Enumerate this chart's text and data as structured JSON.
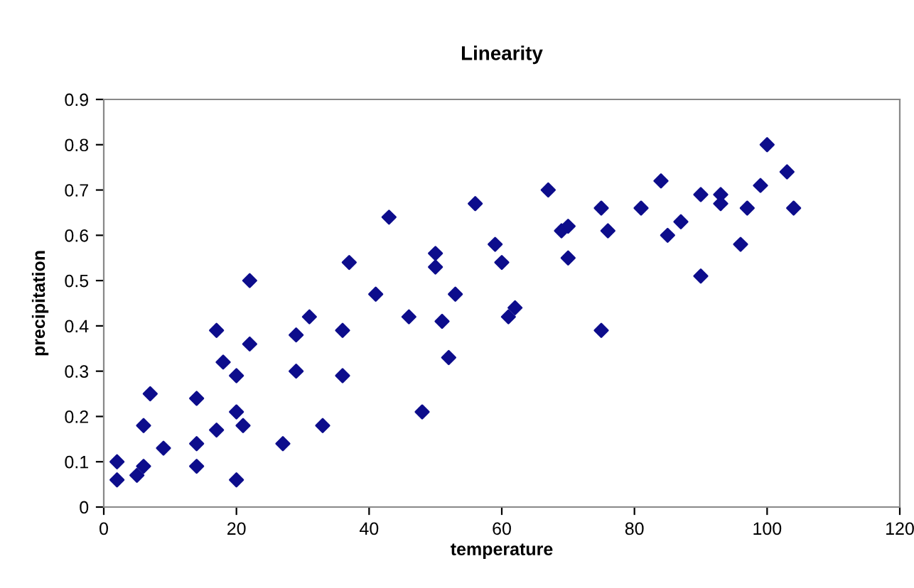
{
  "chart_data": {
    "type": "scatter",
    "title": "Linearity",
    "xlabel": "temperature",
    "ylabel": "precipitation",
    "x": [
      2,
      2,
      5,
      6,
      6,
      7,
      9,
      14,
      14,
      14,
      17,
      17,
      18,
      20,
      20,
      20,
      21,
      22,
      22,
      27,
      29,
      29,
      31,
      33,
      36,
      36,
      37,
      41,
      43,
      46,
      48,
      50,
      50,
      51,
      52,
      53,
      56,
      59,
      60,
      61,
      62,
      67,
      69,
      70,
      70,
      75,
      75,
      76,
      81,
      84,
      85,
      87,
      90,
      90,
      93,
      93,
      96,
      97,
      99,
      100,
      103,
      104
    ],
    "series": [
      {
        "color": "#0d0d8c",
        "values": [
          0.06,
          0.1,
          0.07,
          0.09,
          0.18,
          0.25,
          0.13,
          0.24,
          0.14,
          0.09,
          0.39,
          0.17,
          0.32,
          0.29,
          0.21,
          0.06,
          0.18,
          0.5,
          0.36,
          0.14,
          0.38,
          0.3,
          0.42,
          0.18,
          0.39,
          0.29,
          0.54,
          0.47,
          0.64,
          0.42,
          0.21,
          0.56,
          0.53,
          0.41,
          0.33,
          0.47,
          0.67,
          0.58,
          0.54,
          0.42,
          0.44,
          0.7,
          0.61,
          0.62,
          0.55,
          0.66,
          0.39,
          0.61,
          0.66,
          0.72,
          0.6,
          0.63,
          0.69,
          0.51,
          0.69,
          0.67,
          0.58,
          0.66,
          0.71,
          0.8,
          0.74,
          0.66
        ]
      }
    ],
    "xlim": [
      0,
      120
    ],
    "xticks": [
      0,
      20,
      40,
      60,
      80,
      100,
      120
    ],
    "ylim": [
      0,
      0.9
    ],
    "yticks": [
      {
        "value": 0,
        "label": "0"
      },
      0.1,
      0.2,
      0.3,
      0.4,
      0.5,
      0.6,
      0.7,
      0.8,
      0.9
    ],
    "marker": "diamond",
    "grid": false,
    "legend": false
  }
}
